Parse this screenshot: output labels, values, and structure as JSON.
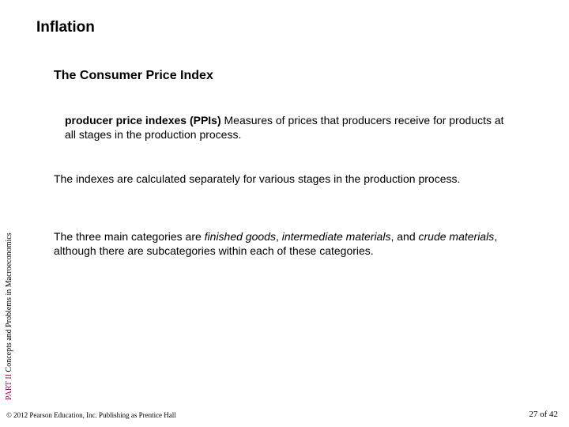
{
  "title": "Inflation",
  "subtitle": "The Consumer Price Index",
  "definition": {
    "term": "producer price indexes (PPIs)",
    "text": "  Measures of prices that producers receive for products at all stages in the production process."
  },
  "paragraph1": "The indexes are calculated separately for various stages in the production process.",
  "paragraph2": {
    "pre": "The three main categories are ",
    "em1": "finished goods",
    "mid1": ", ",
    "em2": "intermediate materials",
    "mid2": ", and ",
    "em3": "crude materials",
    "post": ", although there are subcategories within each of these categories."
  },
  "sidebar": {
    "part": "PART II",
    "rest": "  Concepts and Problems in Macroeconomics"
  },
  "copyright": "© 2012 Pearson Education, Inc. Publishing as Prentice Hall",
  "page": {
    "current": "27",
    "sep": " of ",
    "total": "42"
  },
  "colors": {
    "accent": "#a00050",
    "text": "#000000",
    "background": "#ffffff"
  }
}
